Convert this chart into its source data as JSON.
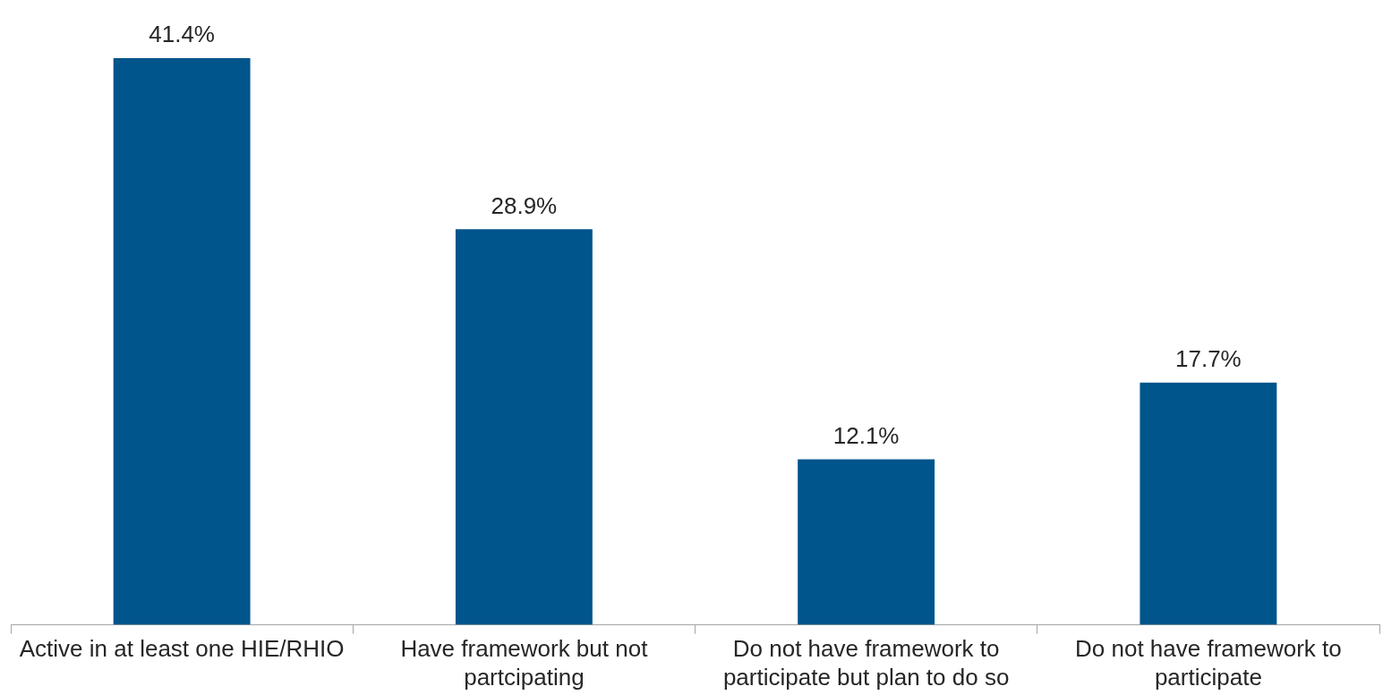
{
  "chart_data": {
    "type": "bar",
    "categories": [
      "Active in at least one HIE/RHIO",
      "Have framework but not partcipating",
      "Do not have framework to participate but plan to do so",
      "Do not have framework to participate"
    ],
    "values": [
      41.4,
      28.9,
      12.1,
      17.7
    ],
    "color": "#00558c",
    "value_labels": [
      "41.4%",
      "28.9%",
      "12.1%",
      "17.7%"
    ],
    "tick_labels": "x",
    "grid": false,
    "legend": false
  }
}
